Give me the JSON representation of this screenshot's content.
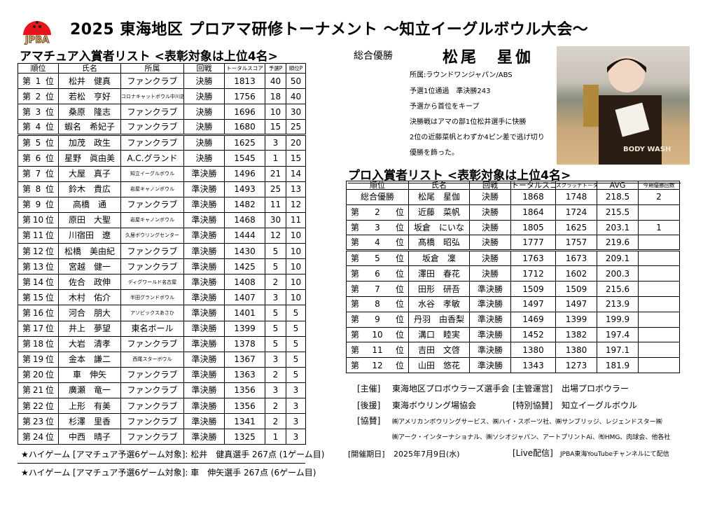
{
  "header": {
    "logo_text": "JPBA",
    "title": "2025 東海地区 プロアマ研修トーナメント ～知立イーグルボウル大会～",
    "logo_color": "#e8141b"
  },
  "amateur": {
    "heading": "アマチュア入賞者リスト <表彰対象は上位4名>",
    "columns": [
      "順位",
      "氏名",
      "所属",
      "回戦",
      "トータルスコア",
      "予選P",
      "順位P"
    ],
    "rows": [
      [
        "第",
        "1",
        "位",
        "松井　健真",
        "ファンクラブ",
        "決勝",
        "1813",
        "40",
        "50"
      ],
      [
        "第",
        "2",
        "位",
        "若松　亨好",
        "コロナキャットボウル中川店",
        "決勝",
        "1756",
        "18",
        "40"
      ],
      [
        "第",
        "3",
        "位",
        "桑原　隆志",
        "ファンクラブ",
        "決勝",
        "1696",
        "10",
        "30"
      ],
      [
        "第",
        "4",
        "位",
        "蝦名　希妃子",
        "ファンクラブ",
        "決勝",
        "1680",
        "15",
        "25"
      ],
      [
        "第",
        "5",
        "位",
        "加茂　政生",
        "ファンクラブ",
        "決勝",
        "1625",
        "3",
        "20"
      ],
      [
        "第",
        "6",
        "位",
        "星野　眞由美",
        "A.C.グランド",
        "決勝",
        "1545",
        "1",
        "15"
      ],
      [
        "第",
        "7",
        "位",
        "大屋　真子",
        "知立イーグルボウル",
        "準決勝",
        "1496",
        "21",
        "14"
      ],
      [
        "第",
        "8",
        "位",
        "鈴木　貴広",
        "岩屋キャノンボウル",
        "準決勝",
        "1493",
        "25",
        "13"
      ],
      [
        "第",
        "9",
        "位",
        "高橋　通",
        "ファンクラブ",
        "準決勝",
        "1482",
        "11",
        "12"
      ],
      [
        "第",
        "10",
        "位",
        "原田　大聖",
        "岩屋キャノンボウル",
        "準決勝",
        "1468",
        "30",
        "11"
      ],
      [
        "第",
        "11",
        "位",
        "川宿田　遼",
        "久居ボウリングセンター",
        "準決勝",
        "1444",
        "12",
        "10"
      ],
      [
        "第",
        "12",
        "位",
        "松橋　美由紀",
        "ファンクラブ",
        "準決勝",
        "1430",
        "5",
        "10"
      ],
      [
        "第",
        "13",
        "位",
        "宮越　健一",
        "ファンクラブ",
        "準決勝",
        "1425",
        "5",
        "10"
      ],
      [
        "第",
        "14",
        "位",
        "佐合　政伸",
        "ディグワールド名古屋",
        "準決勝",
        "1408",
        "2",
        "10"
      ],
      [
        "第",
        "15",
        "位",
        "木村　佑介",
        "半田グランドボウル",
        "準決勝",
        "1407",
        "3",
        "10"
      ],
      [
        "第",
        "16",
        "位",
        "河合　朋大",
        "アソビックスあさひ",
        "準決勝",
        "1401",
        "5",
        "5"
      ],
      [
        "第",
        "17",
        "位",
        "井上　夢望",
        "東名ボール",
        "準決勝",
        "1399",
        "5",
        "5"
      ],
      [
        "第",
        "18",
        "位",
        "大岩　清孝",
        "ファンクラブ",
        "準決勝",
        "1378",
        "5",
        "5"
      ],
      [
        "第",
        "19",
        "位",
        "金本　謙二",
        "西尾スターボウル",
        "準決勝",
        "1367",
        "3",
        "5"
      ],
      [
        "第",
        "20",
        "位",
        "車　伸矢",
        "ファンクラブ",
        "準決勝",
        "1363",
        "2",
        "5"
      ],
      [
        "第",
        "21",
        "位",
        "廣瀬　竜一",
        "ファンクラブ",
        "準決勝",
        "1356",
        "3",
        "3"
      ],
      [
        "第",
        "22",
        "位",
        "上形　有美",
        "ファンクラブ",
        "準決勝",
        "1356",
        "2",
        "3"
      ],
      [
        "第",
        "23",
        "位",
        "杉澤　里香",
        "ファンクラブ",
        "準決勝",
        "1341",
        "2",
        "3"
      ],
      [
        "第",
        "24",
        "位",
        "中西　晴子",
        "ファンクラブ",
        "準決勝",
        "1325",
        "1",
        "3"
      ]
    ],
    "notes": [
      "★ハイゲーム [アマチュア予選6ゲーム対象]: 松井　健真選手 267点 (1ゲーム目)",
      "★ハイゲーム [アマチュア予選6ゲーム対象]: 車　伸矢選手 267点 (6ゲーム目)"
    ]
  },
  "winner": {
    "label": "総合優勝",
    "name": "松尾　星伽",
    "details": [
      "所属:ラウンドワンジャパン/ABS",
      "予選1位通過　準決勝243",
      "予選から首位をキープ",
      "決勝戦はアマの部1位松井選手に快勝",
      "2位の近藤菜帆とわずか4ピン差で逃げ切り",
      "優勝を飾った。"
    ],
    "photo_shirt_text": "BODY WASH"
  },
  "pro": {
    "heading": "プロ入賞者リスト <表彰対象は上位4名>",
    "columns": [
      "順位",
      "氏名",
      "回戦",
      "トータルスコア",
      "スクラッチトータル",
      "AVG",
      "今期優勝回数"
    ],
    "rows": [
      [
        "総合優勝",
        "",
        "",
        "松尾　星伽",
        "決勝",
        "1868",
        "1748",
        "218.5",
        "2"
      ],
      [
        "第",
        "2",
        "位",
        "近藤　菜帆",
        "決勝",
        "1864",
        "1724",
        "215.5",
        ""
      ],
      [
        "第",
        "3",
        "位",
        "坂倉　にいな",
        "決勝",
        "1805",
        "1625",
        "203.1",
        "1"
      ],
      [
        "第",
        "4",
        "位",
        "髙橋　昭弘",
        "決勝",
        "1777",
        "1757",
        "219.6",
        ""
      ],
      [
        "第",
        "5",
        "位",
        "坂倉　凜",
        "決勝",
        "1763",
        "1673",
        "209.1",
        ""
      ],
      [
        "第",
        "6",
        "位",
        "澤田　春花",
        "決勝",
        "1712",
        "1602",
        "200.3",
        ""
      ],
      [
        "第",
        "7",
        "位",
        "田形　研吾",
        "準決勝",
        "1509",
        "1509",
        "215.6",
        ""
      ],
      [
        "第",
        "8",
        "位",
        "水谷　孝敏",
        "準決勝",
        "1497",
        "1497",
        "213.9",
        ""
      ],
      [
        "第",
        "9",
        "位",
        "丹羽　由香梨",
        "準決勝",
        "1469",
        "1399",
        "199.9",
        ""
      ],
      [
        "第",
        "10",
        "位",
        "溝口　睦実",
        "準決勝",
        "1452",
        "1382",
        "197.4",
        ""
      ],
      [
        "第",
        "11",
        "位",
        "吉田　文啓",
        "準決勝",
        "1380",
        "1380",
        "197.1",
        ""
      ],
      [
        "第",
        "12",
        "位",
        "山田　悠花",
        "準決勝",
        "1343",
        "1273",
        "181.9",
        ""
      ]
    ]
  },
  "info": {
    "organizer_label": "[主催]",
    "organizer": "東海地区プロボウラーズ選手会",
    "management_label": "[主管運営]",
    "management": "出場プロボウラー",
    "support_label": "[後援]",
    "support": "東海ボウリング場協会",
    "special_label": "[特別協賛]",
    "special": "知立イーグルボウル",
    "sponsors_label": "[協賛]",
    "sponsors_line1": "㈱アメリカンボウリングサービス、㈱ハイ・スポーツ社、㈱サンブリッジ、レジェンドスター㈱",
    "sponsors_line2": "㈱アーク・インターナショナル、㈱ソシオジャパン、アートプリントAi、㈲HMG、肉球会、他各社",
    "date_label": "[開催期日]",
    "date": "2025年7月9日(水)",
    "live_label": "[Live配信]",
    "live": "JPBA東海YouTubeチャンネルにて配信"
  }
}
